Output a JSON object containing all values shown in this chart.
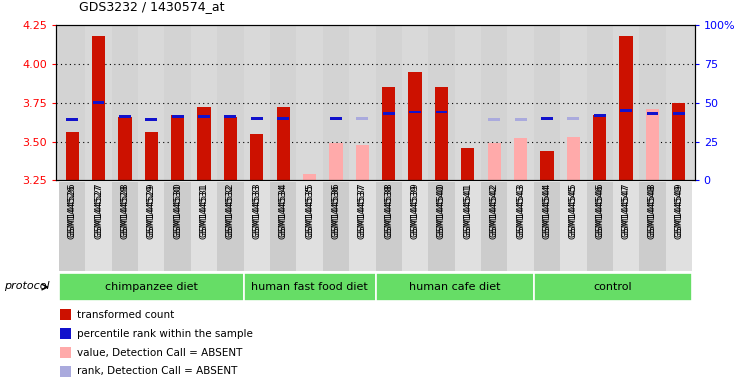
{
  "title": "GDS3232 / 1430574_at",
  "samples": [
    "GSM144526",
    "GSM144527",
    "GSM144528",
    "GSM144529",
    "GSM144530",
    "GSM144531",
    "GSM144532",
    "GSM144533",
    "GSM144534",
    "GSM144535",
    "GSM144536",
    "GSM144537",
    "GSM144538",
    "GSM144539",
    "GSM144540",
    "GSM144541",
    "GSM144542",
    "GSM144543",
    "GSM144544",
    "GSM144545",
    "GSM144546",
    "GSM144547",
    "GSM144548",
    "GSM144549"
  ],
  "red_values": [
    3.56,
    4.18,
    3.66,
    3.56,
    3.67,
    3.72,
    3.66,
    3.55,
    3.72,
    null,
    null,
    null,
    3.85,
    3.95,
    3.85,
    3.46,
    null,
    null,
    3.44,
    null,
    3.67,
    4.18,
    null,
    3.75
  ],
  "pink_values": [
    null,
    null,
    null,
    null,
    null,
    null,
    null,
    null,
    null,
    3.29,
    3.49,
    3.48,
    null,
    null,
    null,
    null,
    3.49,
    3.52,
    null,
    3.53,
    null,
    null,
    3.71,
    null
  ],
  "blue_values": [
    3.64,
    3.75,
    3.66,
    3.64,
    3.66,
    3.66,
    3.66,
    3.65,
    3.65,
    null,
    3.65,
    null,
    3.68,
    3.69,
    3.69,
    null,
    null,
    null,
    3.65,
    null,
    3.67,
    3.7,
    3.68,
    3.68
  ],
  "light_blue_values": [
    null,
    null,
    null,
    null,
    null,
    null,
    null,
    null,
    null,
    null,
    null,
    3.65,
    null,
    null,
    null,
    null,
    3.64,
    3.64,
    null,
    3.65,
    null,
    null,
    null,
    null
  ],
  "groups": [
    {
      "label": "chimpanzee diet",
      "start": 0,
      "end": 7
    },
    {
      "label": "human fast food diet",
      "start": 7,
      "end": 12
    },
    {
      "label": "human cafe diet",
      "start": 12,
      "end": 18
    },
    {
      "label": "control",
      "start": 18,
      "end": 24
    }
  ],
  "ylim_left": [
    3.25,
    4.25
  ],
  "ylim_right": [
    0,
    100
  ],
  "yticks_left": [
    3.25,
    3.5,
    3.75,
    4.0,
    4.25
  ],
  "yticks_right": [
    0,
    25,
    50,
    75,
    100
  ],
  "grid_values": [
    3.5,
    3.75,
    4.0
  ],
  "bar_color_red": "#CC1100",
  "bar_color_pink": "#FFAAAA",
  "square_color_blue": "#1111CC",
  "square_color_lightblue": "#AAAADD",
  "plot_bg": "#D8D8D8",
  "bar_width": 0.5,
  "group_color": "#66DD66",
  "legend_items": [
    {
      "color": "#CC1100",
      "label": "transformed count"
    },
    {
      "color": "#1111CC",
      "label": "percentile rank within the sample"
    },
    {
      "color": "#FFAAAA",
      "label": "value, Detection Call = ABSENT"
    },
    {
      "color": "#AAAADD",
      "label": "rank, Detection Call = ABSENT"
    }
  ]
}
